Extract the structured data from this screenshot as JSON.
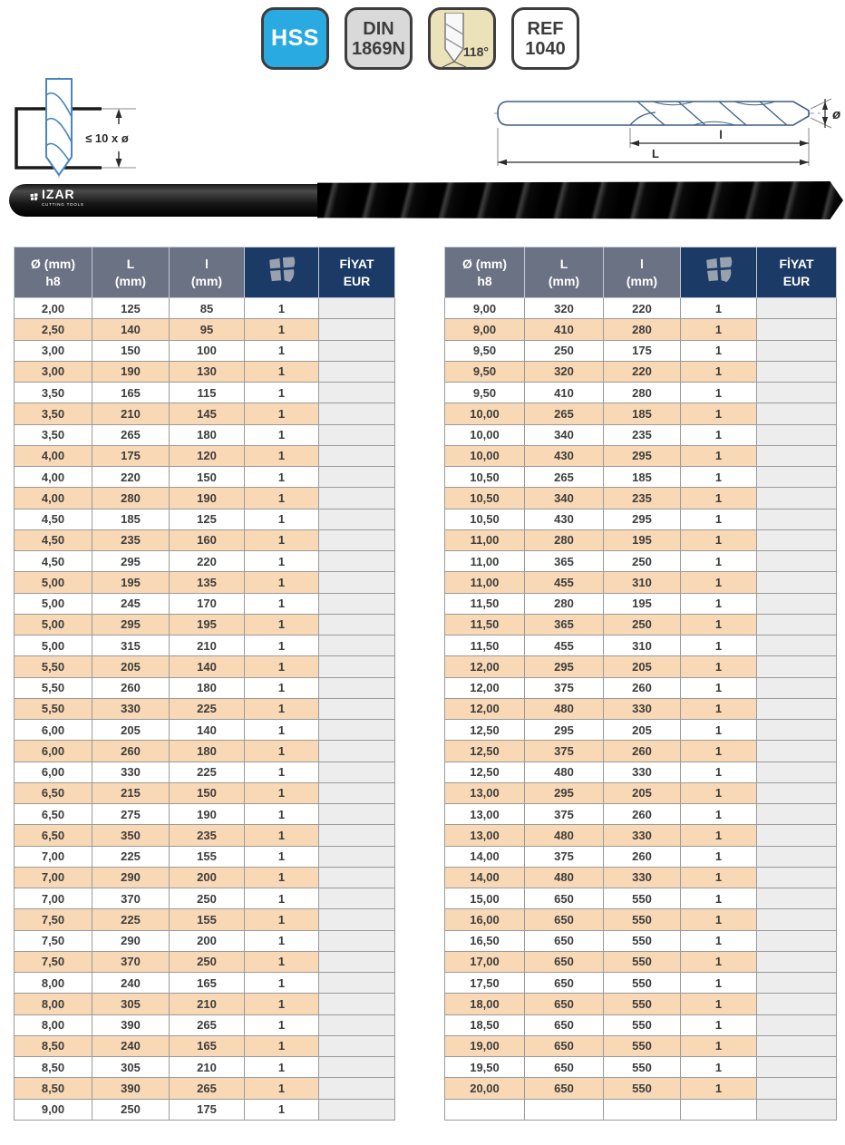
{
  "badges": {
    "material": "HSS",
    "din_line1": "DIN",
    "din_line2": "1869N",
    "point_angle": "118°",
    "ref_line1": "REF",
    "ref_line2": "1040"
  },
  "diagram_left": {
    "dimension_label": "≤ 10 x ø"
  },
  "diagram_right": {
    "diameter_label": "ø",
    "flute_length_label": "l",
    "total_length_label": "L"
  },
  "photo": {
    "brand": "IZAR",
    "brand_sub": "CUTTING TOOLS"
  },
  "tables": {
    "headers": [
      {
        "line1": "Ø (mm)",
        "line2": "h8"
      },
      {
        "line1": "L",
        "line2": "(mm)"
      },
      {
        "line1": "l",
        "line2": "(mm)"
      },
      {
        "icon": "izar-logo-icon"
      },
      {
        "line1": "FİYAT",
        "line2": "EUR"
      }
    ],
    "left_rows": [
      [
        "2,00",
        "125",
        "85",
        "1",
        ""
      ],
      [
        "2,50",
        "140",
        "95",
        "1",
        ""
      ],
      [
        "3,00",
        "150",
        "100",
        "1",
        ""
      ],
      [
        "3,00",
        "190",
        "130",
        "1",
        ""
      ],
      [
        "3,50",
        "165",
        "115",
        "1",
        ""
      ],
      [
        "3,50",
        "210",
        "145",
        "1",
        ""
      ],
      [
        "3,50",
        "265",
        "180",
        "1",
        ""
      ],
      [
        "4,00",
        "175",
        "120",
        "1",
        ""
      ],
      [
        "4,00",
        "220",
        "150",
        "1",
        ""
      ],
      [
        "4,00",
        "280",
        "190",
        "1",
        ""
      ],
      [
        "4,50",
        "185",
        "125",
        "1",
        ""
      ],
      [
        "4,50",
        "235",
        "160",
        "1",
        ""
      ],
      [
        "4,50",
        "295",
        "220",
        "1",
        ""
      ],
      [
        "5,00",
        "195",
        "135",
        "1",
        ""
      ],
      [
        "5,00",
        "245",
        "170",
        "1",
        ""
      ],
      [
        "5,00",
        "295",
        "195",
        "1",
        ""
      ],
      [
        "5,00",
        "315",
        "210",
        "1",
        ""
      ],
      [
        "5,50",
        "205",
        "140",
        "1",
        ""
      ],
      [
        "5,50",
        "260",
        "180",
        "1",
        ""
      ],
      [
        "5,50",
        "330",
        "225",
        "1",
        ""
      ],
      [
        "6,00",
        "205",
        "140",
        "1",
        ""
      ],
      [
        "6,00",
        "260",
        "180",
        "1",
        ""
      ],
      [
        "6,00",
        "330",
        "225",
        "1",
        ""
      ],
      [
        "6,50",
        "215",
        "150",
        "1",
        ""
      ],
      [
        "6,50",
        "275",
        "190",
        "1",
        ""
      ],
      [
        "6,50",
        "350",
        "235",
        "1",
        ""
      ],
      [
        "7,00",
        "225",
        "155",
        "1",
        ""
      ],
      [
        "7,00",
        "290",
        "200",
        "1",
        ""
      ],
      [
        "7,00",
        "370",
        "250",
        "1",
        ""
      ],
      [
        "7,50",
        "225",
        "155",
        "1",
        ""
      ],
      [
        "7,50",
        "290",
        "200",
        "1",
        ""
      ],
      [
        "7,50",
        "370",
        "250",
        "1",
        ""
      ],
      [
        "8,00",
        "240",
        "165",
        "1",
        ""
      ],
      [
        "8,00",
        "305",
        "210",
        "1",
        ""
      ],
      [
        "8,00",
        "390",
        "265",
        "1",
        ""
      ],
      [
        "8,50",
        "240",
        "165",
        "1",
        ""
      ],
      [
        "8,50",
        "305",
        "210",
        "1",
        ""
      ],
      [
        "8,50",
        "390",
        "265",
        "1",
        ""
      ],
      [
        "9,00",
        "250",
        "175",
        "1",
        ""
      ]
    ],
    "right_rows": [
      [
        "9,00",
        "320",
        "220",
        "1",
        ""
      ],
      [
        "9,00",
        "410",
        "280",
        "1",
        ""
      ],
      [
        "9,50",
        "250",
        "175",
        "1",
        ""
      ],
      [
        "9,50",
        "320",
        "220",
        "1",
        ""
      ],
      [
        "9,50",
        "410",
        "280",
        "1",
        ""
      ],
      [
        "10,00",
        "265",
        "185",
        "1",
        ""
      ],
      [
        "10,00",
        "340",
        "235",
        "1",
        ""
      ],
      [
        "10,00",
        "430",
        "295",
        "1",
        ""
      ],
      [
        "10,50",
        "265",
        "185",
        "1",
        ""
      ],
      [
        "10,50",
        "340",
        "235",
        "1",
        ""
      ],
      [
        "10,50",
        "430",
        "295",
        "1",
        ""
      ],
      [
        "11,00",
        "280",
        "195",
        "1",
        ""
      ],
      [
        "11,00",
        "365",
        "250",
        "1",
        ""
      ],
      [
        "11,00",
        "455",
        "310",
        "1",
        ""
      ],
      [
        "11,50",
        "280",
        "195",
        "1",
        ""
      ],
      [
        "11,50",
        "365",
        "250",
        "1",
        ""
      ],
      [
        "11,50",
        "455",
        "310",
        "1",
        ""
      ],
      [
        "12,00",
        "295",
        "205",
        "1",
        ""
      ],
      [
        "12,00",
        "375",
        "260",
        "1",
        ""
      ],
      [
        "12,00",
        "480",
        "330",
        "1",
        ""
      ],
      [
        "12,50",
        "295",
        "205",
        "1",
        ""
      ],
      [
        "12,50",
        "375",
        "260",
        "1",
        ""
      ],
      [
        "12,50",
        "480",
        "330",
        "1",
        ""
      ],
      [
        "13,00",
        "295",
        "205",
        "1",
        ""
      ],
      [
        "13,00",
        "375",
        "260",
        "1",
        ""
      ],
      [
        "13,00",
        "480",
        "330",
        "1",
        ""
      ],
      [
        "14,00",
        "375",
        "260",
        "1",
        ""
      ],
      [
        "14,00",
        "480",
        "330",
        "1",
        ""
      ],
      [
        "15,00",
        "650",
        "550",
        "1",
        ""
      ],
      [
        "16,00",
        "650",
        "550",
        "1",
        ""
      ],
      [
        "16,50",
        "650",
        "550",
        "1",
        ""
      ],
      [
        "17,00",
        "650",
        "550",
        "1",
        ""
      ],
      [
        "17,50",
        "650",
        "550",
        "1",
        ""
      ],
      [
        "18,00",
        "650",
        "550",
        "1",
        ""
      ],
      [
        "18,50",
        "650",
        "550",
        "1",
        ""
      ],
      [
        "19,00",
        "650",
        "550",
        "1",
        ""
      ],
      [
        "19,50",
        "650",
        "550",
        "1",
        ""
      ],
      [
        "20,00",
        "650",
        "550",
        "1",
        ""
      ],
      [
        "",
        "",
        "",
        "",
        ""
      ]
    ]
  },
  "colors": {
    "accent_cyan": "#29abe2",
    "header_navy": "#1c3a66",
    "header_gray": "#6b7283",
    "row_alt_orange": "#f9d9b5",
    "price_cell_gray": "#ededed",
    "drawing_blue": "#4a86c2"
  }
}
